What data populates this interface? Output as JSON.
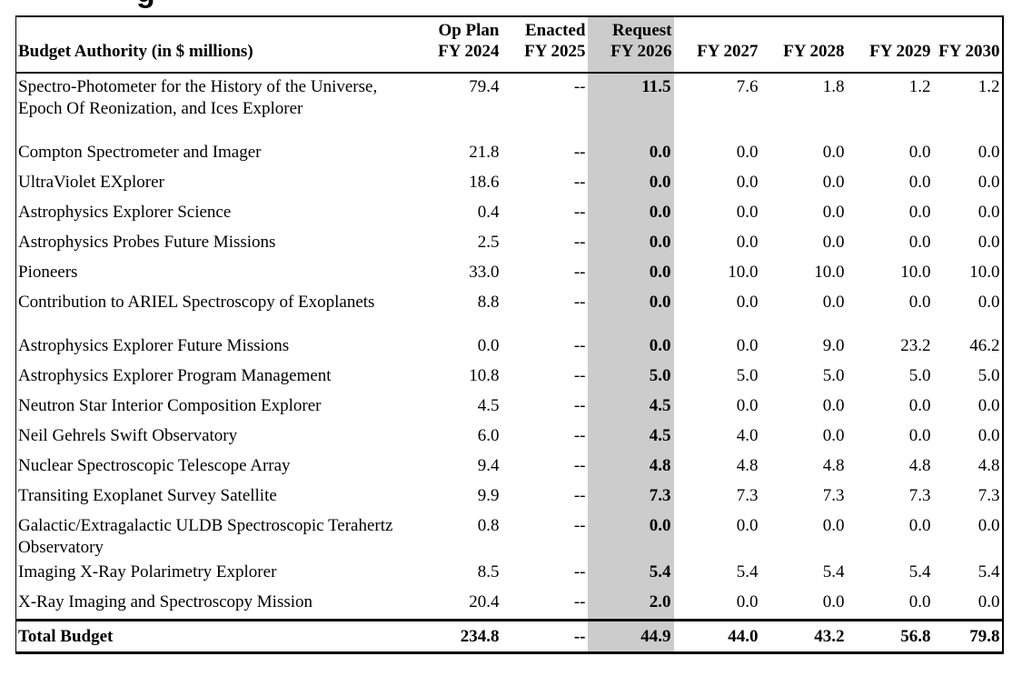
{
  "heading_fragment": "g",
  "table": {
    "header": {
      "row_label": "Budget Authority (in $ millions)",
      "columns": [
        {
          "line1": "Op Plan",
          "line2": "FY 2024"
        },
        {
          "line1": "Enacted",
          "line2": "FY 2025"
        },
        {
          "line1": "Request",
          "line2": "FY 2026"
        },
        {
          "line1": "",
          "line2": "FY 2027"
        },
        {
          "line1": "",
          "line2": "FY 2028"
        },
        {
          "line1": "",
          "line2": "FY 2029"
        },
        {
          "line1": "",
          "line2": "FY 2030"
        }
      ]
    },
    "rows": [
      {
        "name": "Spectro-Photometer for the History of the Universe, Epoch Of Reonization, and Ices Explorer",
        "values": [
          "79.4",
          "--",
          "11.5",
          "7.6",
          "1.8",
          "1.2",
          "1.2"
        ]
      },
      {
        "name": "Compton Spectrometer and Imager",
        "values": [
          "21.8",
          "--",
          "0.0",
          "0.0",
          "0.0",
          "0.0",
          "0.0"
        ]
      },
      {
        "name": "UltraViolet EXplorer",
        "values": [
          "18.6",
          "--",
          "0.0",
          "0.0",
          "0.0",
          "0.0",
          "0.0"
        ]
      },
      {
        "name": "Astrophysics Explorer Science",
        "values": [
          "0.4",
          "--",
          "0.0",
          "0.0",
          "0.0",
          "0.0",
          "0.0"
        ]
      },
      {
        "name": "Astrophysics Probes Future Missions",
        "values": [
          "2.5",
          "--",
          "0.0",
          "0.0",
          "0.0",
          "0.0",
          "0.0"
        ]
      },
      {
        "name": "Pioneers",
        "values": [
          "33.0",
          "--",
          "0.0",
          "10.0",
          "10.0",
          "10.0",
          "10.0"
        ]
      },
      {
        "name": "Contribution to ARIEL Spectroscopy of Exoplanets",
        "values": [
          "8.8",
          "--",
          "0.0",
          "0.0",
          "0.0",
          "0.0",
          "0.0"
        ]
      },
      {
        "name": "Astrophysics Explorer Future Missions",
        "values": [
          "0.0",
          "--",
          "0.0",
          "0.0",
          "9.0",
          "23.2",
          "46.2"
        ]
      },
      {
        "name": "Astrophysics Explorer Program Management",
        "values": [
          "10.8",
          "--",
          "5.0",
          "5.0",
          "5.0",
          "5.0",
          "5.0"
        ]
      },
      {
        "name": "Neutron Star Interior Composition Explorer",
        "values": [
          "4.5",
          "--",
          "4.5",
          "0.0",
          "0.0",
          "0.0",
          "0.0"
        ]
      },
      {
        "name": "Neil Gehrels Swift Observatory",
        "values": [
          "6.0",
          "--",
          "4.5",
          "4.0",
          "0.0",
          "0.0",
          "0.0"
        ]
      },
      {
        "name": "Nuclear Spectroscopic Telescope Array",
        "values": [
          "9.4",
          "--",
          "4.8",
          "4.8",
          "4.8",
          "4.8",
          "4.8"
        ]
      },
      {
        "name": "Transiting Exoplanet Survey Satellite",
        "values": [
          "9.9",
          "--",
          "7.3",
          "7.3",
          "7.3",
          "7.3",
          "7.3"
        ]
      },
      {
        "name": "Galactic/Extragalactic ULDB Spectroscopic Terahertz Observatory",
        "values": [
          "0.8",
          "--",
          "0.0",
          "0.0",
          "0.0",
          "0.0",
          "0.0"
        ]
      },
      {
        "name": "Imaging X-Ray Polarimetry Explorer",
        "values": [
          "8.5",
          "--",
          "5.4",
          "5.4",
          "5.4",
          "5.4",
          "5.4"
        ]
      },
      {
        "name": "X-Ray Imaging and Spectroscopy Mission",
        "values": [
          "20.4",
          "--",
          "2.0",
          "0.0",
          "0.0",
          "0.0",
          "0.0"
        ]
      }
    ],
    "total": {
      "name": "Total Budget",
      "values": [
        "234.8",
        "--",
        "44.9",
        "44.0",
        "43.2",
        "56.8",
        "79.8"
      ]
    },
    "highlight_color": "#cccccc"
  }
}
